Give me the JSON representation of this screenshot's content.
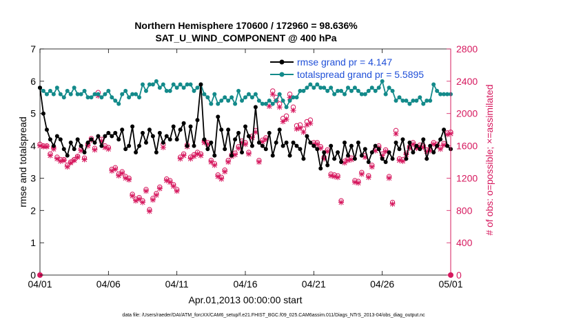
{
  "colors": {
    "rmse": "#000000",
    "spread": "#138a8a",
    "obs": "#d6185e",
    "legend_text": "#1f4fd8",
    "axes": "#000000"
  },
  "chart_data": {
    "type": "line",
    "title_line1": "Northern Hemisphere 170600 / 172960 = 98.636%",
    "title_line2": "SAT_U_WIND_COMPONENT @ 400 hPa",
    "xlabel": "Apr.01,2013 00:00:00 start",
    "ylabel_left": "rmse and totalspread",
    "ylabel_right": "# of obs: o=possible; ×=assimilated",
    "footnote": "data file: /Users/raeder/DAI/ATM_forcXX/CAM6_setup/f.e21.FHIST_BGC.f09_025.CAM6assim.011/Diags_NTrS_2013-04/obs_diag_output.nc",
    "xlim": [
      0,
      30
    ],
    "ylim_left": [
      0,
      7
    ],
    "ylim_right": [
      0,
      2800
    ],
    "x_ticks": [
      0,
      5,
      10,
      15,
      20,
      25,
      30
    ],
    "x_tick_labels": [
      "04/01",
      "04/06",
      "04/11",
      "04/16",
      "04/21",
      "04/26",
      "05/01"
    ],
    "y_left_ticks": [
      "0",
      "1",
      "2",
      "3",
      "4",
      "5",
      "6",
      "7"
    ],
    "y_right_ticks": [
      "0",
      "400",
      "800",
      "1200",
      "1600",
      "2000",
      "2400",
      "2800"
    ],
    "legend": [
      {
        "name": "rmse grand pr = 4.147",
        "series": "rmse"
      },
      {
        "name": "totalspread grand pr = 5.5895",
        "series": "spread"
      }
    ],
    "series": [
      {
        "name": "rmse",
        "axis": "left",
        "x": [
          0.0,
          0.25,
          0.5,
          0.75,
          1.0,
          1.25,
          1.5,
          1.75,
          2.0,
          2.25,
          2.5,
          2.75,
          3.0,
          3.25,
          3.5,
          3.75,
          4.0,
          4.25,
          4.5,
          4.75,
          5.0,
          5.25,
          5.5,
          5.75,
          6.0,
          6.25,
          6.5,
          6.75,
          7.0,
          7.25,
          7.5,
          7.75,
          8.0,
          8.25,
          8.5,
          8.75,
          9.0,
          9.25,
          9.5,
          9.75,
          10.0,
          10.25,
          10.5,
          10.75,
          11.0,
          11.25,
          11.5,
          11.75,
          12.0,
          12.25,
          12.5,
          12.75,
          13.0,
          13.25,
          13.5,
          13.75,
          14.0,
          14.25,
          14.5,
          14.75,
          15.0,
          15.25,
          15.5,
          15.75,
          16.0,
          16.25,
          16.5,
          16.75,
          17.0,
          17.25,
          17.5,
          17.75,
          18.0,
          18.25,
          18.5,
          18.75,
          19.0,
          19.25,
          19.5,
          19.75,
          20.0,
          20.25,
          20.5,
          20.75,
          21.0,
          21.25,
          21.5,
          21.75,
          22.0,
          22.25,
          22.5,
          22.75,
          23.0,
          23.25,
          23.5,
          23.75,
          24.0,
          24.25,
          24.5,
          24.75,
          25.0,
          25.25,
          25.5,
          25.75,
          26.0,
          26.25,
          26.5,
          26.75,
          27.0,
          27.25,
          27.5,
          27.75,
          28.0,
          28.25,
          28.5,
          28.75,
          29.0,
          29.25,
          29.5,
          29.75,
          30.0
        ],
        "values": [
          5.8,
          5.0,
          4.5,
          4.2,
          4.0,
          4.3,
          4.2,
          3.9,
          3.7,
          4.1,
          3.9,
          4.2,
          4.0,
          3.8,
          4.1,
          4.2,
          4.1,
          4.3,
          4.0,
          4.3,
          4.4,
          4.3,
          4.4,
          4.2,
          4.5,
          3.9,
          4.0,
          4.6,
          3.8,
          4.0,
          4.4,
          4.1,
          4.5,
          4.3,
          3.8,
          4.4,
          4.1,
          4.3,
          4.2,
          4.6,
          4.2,
          4.5,
          4.7,
          4.0,
          4.6,
          4.0,
          4.8,
          5.9,
          4.2,
          3.9,
          4.1,
          3.7,
          4.9,
          4.5,
          3.9,
          4.5,
          3.7,
          4.2,
          4.4,
          3.8,
          4.6,
          4.3,
          4.0,
          5.2,
          4.1,
          4.0,
          3.9,
          4.4,
          3.7,
          4.1,
          4.5,
          4.0,
          4.1,
          3.7,
          4.1,
          4.0,
          3.9,
          3.6,
          4.3,
          4.1,
          4.0,
          3.9,
          3.3,
          3.8,
          3.4,
          4.0,
          3.6,
          3.8,
          3.5,
          4.1,
          3.7,
          4.0,
          3.6,
          4.1,
          3.7,
          3.9,
          3.5,
          3.8,
          4.0,
          3.9,
          3.6,
          3.5,
          3.8,
          3.6,
          4.1,
          3.9,
          4.2,
          3.6,
          4.1,
          3.8,
          4.0,
          3.9,
          4.2,
          3.6,
          4.0,
          3.8,
          4.0,
          4.2,
          4.5,
          4.0,
          3.9
        ]
      },
      {
        "name": "totalspread",
        "axis": "left",
        "x": [
          0.0,
          0.25,
          0.5,
          0.75,
          1.0,
          1.25,
          1.5,
          1.75,
          2.0,
          2.25,
          2.5,
          2.75,
          3.0,
          3.25,
          3.5,
          3.75,
          4.0,
          4.25,
          4.5,
          4.75,
          5.0,
          5.25,
          5.5,
          5.75,
          6.0,
          6.25,
          6.5,
          6.75,
          7.0,
          7.25,
          7.5,
          7.75,
          8.0,
          8.25,
          8.5,
          8.75,
          9.0,
          9.25,
          9.5,
          9.75,
          10.0,
          10.25,
          10.5,
          10.75,
          11.0,
          11.25,
          11.5,
          11.75,
          12.0,
          12.25,
          12.5,
          12.75,
          13.0,
          13.25,
          13.5,
          13.75,
          14.0,
          14.25,
          14.5,
          14.75,
          15.0,
          15.25,
          15.5,
          15.75,
          16.0,
          16.25,
          16.5,
          16.75,
          17.0,
          17.25,
          17.5,
          17.75,
          18.0,
          18.25,
          18.5,
          18.75,
          19.0,
          19.25,
          19.5,
          19.75,
          20.0,
          20.25,
          20.5,
          20.75,
          21.0,
          21.25,
          21.5,
          21.75,
          22.0,
          22.25,
          22.5,
          22.75,
          23.0,
          23.25,
          23.5,
          23.75,
          24.0,
          24.25,
          24.5,
          24.75,
          25.0,
          25.25,
          25.5,
          25.75,
          26.0,
          26.25,
          26.5,
          26.75,
          27.0,
          27.25,
          27.5,
          27.75,
          28.0,
          28.25,
          28.5,
          28.75,
          29.0,
          29.25,
          29.5,
          29.75,
          30.0
        ],
        "values": [
          5.8,
          5.7,
          5.6,
          5.7,
          5.6,
          5.8,
          5.6,
          5.5,
          5.7,
          5.6,
          5.8,
          5.6,
          5.6,
          5.7,
          5.5,
          5.5,
          5.6,
          5.6,
          5.5,
          5.6,
          5.7,
          5.5,
          5.4,
          5.3,
          5.6,
          5.7,
          5.5,
          5.6,
          5.6,
          5.5,
          5.9,
          5.7,
          5.9,
          5.9,
          6.0,
          5.8,
          5.9,
          5.7,
          5.7,
          5.9,
          5.8,
          5.9,
          5.8,
          5.9,
          5.9,
          5.7,
          5.8,
          5.9,
          5.6,
          5.5,
          5.3,
          5.6,
          5.3,
          5.4,
          5.5,
          5.4,
          5.5,
          5.3,
          5.7,
          5.4,
          5.5,
          5.6,
          5.5,
          5.6,
          5.4,
          5.3,
          5.3,
          5.4,
          5.3,
          5.4,
          5.6,
          5.4,
          5.2,
          5.4,
          5.5,
          5.5,
          5.7,
          5.7,
          5.8,
          5.9,
          5.8,
          5.9,
          5.8,
          5.8,
          5.7,
          5.8,
          5.6,
          5.7,
          5.7,
          5.6,
          5.8,
          5.7,
          5.8,
          5.7,
          5.6,
          5.6,
          5.7,
          5.8,
          5.7,
          5.8,
          6.0,
          5.6,
          5.8,
          5.7,
          5.4,
          5.5,
          5.4,
          5.4,
          5.3,
          5.4,
          5.4,
          5.5,
          5.3,
          5.4,
          5.4,
          5.9,
          5.7,
          5.6,
          5.6,
          5.6,
          5.6
        ]
      },
      {
        "name": "obs possible",
        "axis": "right",
        "marker": "o",
        "x": [
          0.0,
          0.25,
          0.5,
          0.75,
          1.0,
          1.25,
          1.5,
          1.75,
          2.0,
          2.25,
          2.5,
          2.75,
          3.0,
          3.25,
          3.5,
          3.75,
          4.0,
          4.25,
          4.5,
          4.75,
          5.0,
          5.25,
          5.5,
          5.75,
          6.0,
          6.25,
          6.5,
          6.75,
          7.0,
          7.25,
          7.5,
          7.75,
          8.0,
          8.25,
          8.5,
          8.75,
          9.0,
          9.25,
          9.5,
          9.75,
          10.0,
          10.25,
          10.5,
          10.75,
          11.0,
          11.25,
          11.5,
          11.75,
          12.0,
          12.25,
          12.5,
          12.75,
          13.0,
          13.25,
          13.5,
          13.75,
          14.0,
          14.25,
          14.5,
          14.75,
          15.0,
          15.25,
          15.5,
          15.75,
          16.0,
          16.25,
          16.5,
          16.75,
          17.0,
          17.25,
          17.5,
          17.75,
          18.0,
          18.25,
          18.5,
          18.75,
          19.0,
          19.25,
          19.5,
          19.75,
          20.0,
          20.25,
          20.5,
          20.75,
          21.0,
          21.25,
          21.5,
          21.75,
          22.0,
          22.25,
          22.5,
          22.75,
          23.0,
          23.25,
          23.5,
          23.75,
          24.0,
          24.25,
          24.5,
          24.75,
          25.0,
          25.25,
          25.5,
          25.75,
          26.0,
          26.25,
          26.5,
          26.75,
          27.0,
          27.25,
          27.5,
          27.75,
          28.0,
          28.25,
          28.5,
          28.75,
          29.0,
          29.25,
          29.5,
          29.75,
          30.0
        ],
        "values": [
          1620,
          1600,
          1600,
          1500,
          1580,
          1460,
          1430,
          1430,
          1360,
          1400,
          1430,
          1470,
          1560,
          1450,
          1620,
          1690,
          1570,
          2260,
          1680,
          1600,
          1580,
          1310,
          1330,
          1250,
          1280,
          1220,
          1200,
          1000,
          940,
          960,
          920,
          1060,
          810,
          950,
          1010,
          1090,
          1620,
          1190,
          1170,
          1120,
          1060,
          1460,
          1500,
          1610,
          1460,
          1490,
          1520,
          1500,
          1660,
          1640,
          1420,
          1380,
          1240,
          1210,
          1300,
          1420,
          1490,
          1510,
          1590,
          1660,
          1640,
          1520,
          1720,
          1790,
          1420,
          1670,
          1700,
          2130,
          2280,
          2200,
          2120,
          1940,
          1970,
          2240,
          2080,
          1850,
          1860,
          1810,
          1900,
          1920,
          1640,
          1640,
          1590,
          1460,
          1550,
          1250,
          1240,
          1230,
          920,
          1410,
          1440,
          1450,
          1170,
          1160,
          1270,
          1480,
          1230,
          1360,
          1560,
          1600,
          1500,
          1550,
          1220,
          900,
          1790,
          1440,
          1430,
          1510,
          1590,
          1640,
          1590,
          1610,
          1600,
          1550,
          1560,
          1640,
          1620,
          1580,
          1630,
          1760,
          1770
        ]
      },
      {
        "name": "obs assimilated",
        "axis": "right",
        "marker": "x",
        "x": [
          0.0,
          0.25,
          0.5,
          0.75,
          1.0,
          1.25,
          1.5,
          1.75,
          2.0,
          2.25,
          2.5,
          2.75,
          3.0,
          3.25,
          3.5,
          3.75,
          4.0,
          4.25,
          4.5,
          4.75,
          5.0,
          5.25,
          5.5,
          5.75,
          6.0,
          6.25,
          6.5,
          6.75,
          7.0,
          7.25,
          7.5,
          7.75,
          8.0,
          8.25,
          8.5,
          8.75,
          9.0,
          9.25,
          9.5,
          9.75,
          10.0,
          10.25,
          10.5,
          10.75,
          11.0,
          11.25,
          11.5,
          11.75,
          12.0,
          12.25,
          12.5,
          12.75,
          13.0,
          13.25,
          13.5,
          13.75,
          14.0,
          14.25,
          14.5,
          14.75,
          15.0,
          15.25,
          15.5,
          15.75,
          16.0,
          16.25,
          16.5,
          16.75,
          17.0,
          17.25,
          17.5,
          17.75,
          18.0,
          18.25,
          18.5,
          18.75,
          19.0,
          19.25,
          19.5,
          19.75,
          20.0,
          20.25,
          20.5,
          20.75,
          21.0,
          21.25,
          21.5,
          21.75,
          22.0,
          22.25,
          22.5,
          22.75,
          23.0,
          23.25,
          23.5,
          23.75,
          24.0,
          24.25,
          24.5,
          24.75,
          25.0,
          25.25,
          25.5,
          25.75,
          26.0,
          26.25,
          26.5,
          26.75,
          27.0,
          27.25,
          27.5,
          27.75,
          28.0,
          28.25,
          28.5,
          28.75,
          29.0,
          29.25,
          29.5,
          29.75,
          30.0
        ],
        "values": [
          1600,
          1590,
          1590,
          1480,
          1560,
          1440,
          1410,
          1420,
          1340,
          1390,
          1420,
          1460,
          1540,
          1430,
          1600,
          1670,
          1550,
          2220,
          1660,
          1580,
          1560,
          1290,
          1310,
          1230,
          1260,
          1200,
          1180,
          980,
          920,
          940,
          900,
          1040,
          790,
          930,
          990,
          1070,
          1580,
          1170,
          1150,
          1100,
          1040,
          1440,
          1480,
          1590,
          1440,
          1470,
          1500,
          1480,
          1640,
          1620,
          1400,
          1360,
          1220,
          1190,
          1280,
          1400,
          1470,
          1490,
          1570,
          1640,
          1620,
          1500,
          1700,
          1770,
          1400,
          1650,
          1680,
          2090,
          2240,
          2160,
          2080,
          1900,
          1930,
          2200,
          2040,
          1810,
          1820,
          1770,
          1860,
          1880,
          1620,
          1620,
          1570,
          1440,
          1530,
          1230,
          1220,
          1210,
          900,
          1390,
          1420,
          1430,
          1150,
          1140,
          1250,
          1460,
          1210,
          1340,
          1540,
          1580,
          1480,
          1530,
          1200,
          880,
          1750,
          1420,
          1410,
          1490,
          1570,
          1620,
          1570,
          1590,
          1580,
          1530,
          1540,
          1620,
          1600,
          1560,
          1610,
          1740,
          1750
        ]
      }
    ]
  }
}
